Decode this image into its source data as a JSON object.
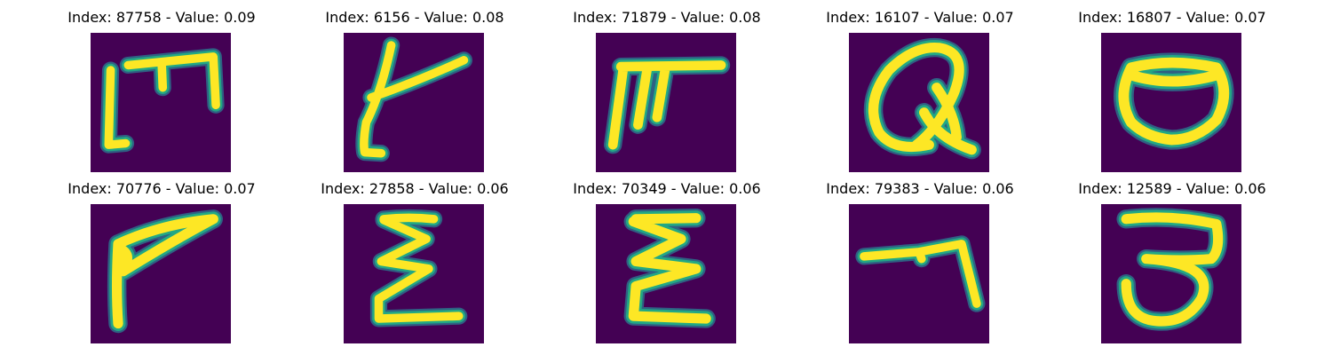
{
  "colors": {
    "background": "#440154",
    "stroke_core": "#fde725",
    "stroke_mid": "#7ad151",
    "stroke_edge": "#22a884",
    "stroke_outer": "#2a788e"
  },
  "panels": [
    {
      "title": "Index: 87758 - Value: 0.09",
      "glyph": "M-like"
    },
    {
      "title": "Index: 6156 - Value: 0.08",
      "glyph": "t-like"
    },
    {
      "title": "Index: 71879 - Value: 0.08",
      "glyph": "pi-like"
    },
    {
      "title": "Index: 16107 - Value: 0.07",
      "glyph": "a-like"
    },
    {
      "title": "Index: 16807 - Value: 0.07",
      "glyph": "o-like"
    },
    {
      "title": "Index: 70776 - Value: 0.07",
      "glyph": "P-like"
    },
    {
      "title": "Index: 27858 - Value: 0.06",
      "glyph": "E-like"
    },
    {
      "title": "Index: 70349 - Value: 0.06",
      "glyph": "E-like"
    },
    {
      "title": "Index: 79383 - Value: 0.06",
      "glyph": "7-like"
    },
    {
      "title": "Index: 12589 - Value: 0.06",
      "glyph": "3-like"
    }
  ]
}
